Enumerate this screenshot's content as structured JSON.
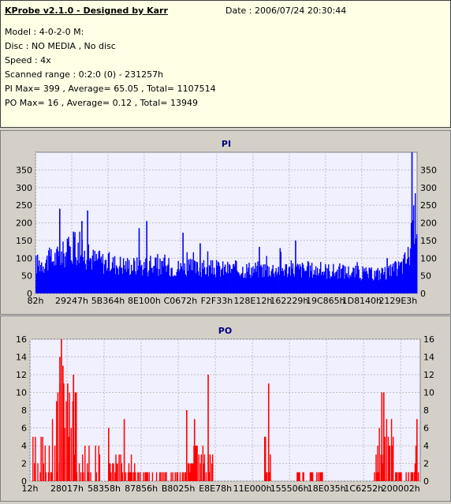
{
  "header": {
    "app_title": "KProbe v2.1.0 - Designed by Karr",
    "date": "Date : 2006/07/24 20:30:44",
    "model": "Model : 4-0-2-0 M:",
    "disc": "Disc : NO MEDIA , No disc",
    "speed": "Speed : 4x",
    "scanned_range": "Scanned range : 0:2:0 (0) - 231257h",
    "pi_stats": "PI Max= 399 , Average= 65.05 , Total= 1107514",
    "po_stats": "PO Max= 16 , Average= 0.12 , Total= 13949"
  },
  "chart_data": [
    {
      "type": "bar",
      "title": "PI",
      "ylim": [
        0,
        400
      ],
      "yticks": [
        0,
        50,
        100,
        150,
        200,
        250,
        300,
        350
      ],
      "xticks": [
        "82h",
        "29247h",
        "5B364h",
        "8E100h",
        "C0672h",
        "F2F33h",
        "128E12h",
        "162229h",
        "19C865h",
        "1D8140h",
        "2129E3h"
      ],
      "grid": true,
      "color": "#0000ff",
      "profile_x": [
        0,
        0.04,
        0.08,
        0.1,
        0.13,
        0.18,
        0.25,
        0.35,
        0.45,
        0.55,
        0.65,
        0.75,
        0.82,
        0.88,
        0.93,
        0.96,
        0.98,
        1.0
      ],
      "profile_y": [
        95,
        110,
        130,
        150,
        120,
        100,
        90,
        85,
        80,
        78,
        80,
        75,
        70,
        62,
        70,
        90,
        130,
        300
      ],
      "spikes": [
        {
          "x": 0.062,
          "y": 240
        },
        {
          "x": 0.082,
          "y": 155
        },
        {
          "x": 0.098,
          "y": 175
        },
        {
          "x": 0.12,
          "y": 205
        },
        {
          "x": 0.135,
          "y": 235
        },
        {
          "x": 0.27,
          "y": 185
        },
        {
          "x": 0.29,
          "y": 205
        },
        {
          "x": 0.385,
          "y": 172
        },
        {
          "x": 0.43,
          "y": 142
        },
        {
          "x": 0.585,
          "y": 132
        },
        {
          "x": 0.68,
          "y": 150
        },
        {
          "x": 0.92,
          "y": 100
        },
        {
          "x": 0.985,
          "y": 400
        }
      ]
    },
    {
      "type": "bar",
      "title": "PO",
      "ylim": [
        0,
        16
      ],
      "yticks": [
        0,
        2,
        4,
        6,
        8,
        10,
        12,
        14,
        16
      ],
      "xticks": [
        "12h",
        "28017h",
        "58358h",
        "87856h",
        "B8025h",
        "E8E78h",
        "11E000h",
        "155506h",
        "18E035h",
        "1C6252h",
        "200002h"
      ],
      "grid": true,
      "color": "#ff0000",
      "clusters": [
        {
          "x0": 0.0,
          "x1": 0.05,
          "level": 4
        },
        {
          "x0": 0.05,
          "x1": 0.12,
          "level": 8
        },
        {
          "x0": 0.12,
          "x1": 0.18,
          "level": 4
        },
        {
          "x0": 0.2,
          "x1": 0.28,
          "level": 2
        },
        {
          "x0": 0.28,
          "x1": 0.4,
          "level": 1
        },
        {
          "x0": 0.4,
          "x1": 0.47,
          "level": 3
        },
        {
          "x0": 0.6,
          "x1": 0.62,
          "level": 4
        },
        {
          "x0": 0.68,
          "x1": 0.75,
          "level": 1
        },
        {
          "x0": 0.88,
          "x1": 0.93,
          "level": 5
        },
        {
          "x0": 0.93,
          "x1": 0.98,
          "level": 1
        },
        {
          "x0": 0.98,
          "x1": 1.0,
          "level": 3
        }
      ],
      "spikes": [
        {
          "x": 0.07,
          "y": 10
        },
        {
          "x": 0.075,
          "y": 14
        },
        {
          "x": 0.079,
          "y": 16
        },
        {
          "x": 0.083,
          "y": 13
        },
        {
          "x": 0.095,
          "y": 11
        },
        {
          "x": 0.11,
          "y": 12
        },
        {
          "x": 0.117,
          "y": 10
        },
        {
          "x": 0.2,
          "y": 6
        },
        {
          "x": 0.24,
          "y": 7
        },
        {
          "x": 0.4,
          "y": 8
        },
        {
          "x": 0.42,
          "y": 7
        },
        {
          "x": 0.455,
          "y": 12
        },
        {
          "x": 0.61,
          "y": 11
        },
        {
          "x": 0.9,
          "y": 10
        },
        {
          "x": 0.905,
          "y": 10
        },
        {
          "x": 0.99,
          "y": 7
        }
      ]
    }
  ]
}
